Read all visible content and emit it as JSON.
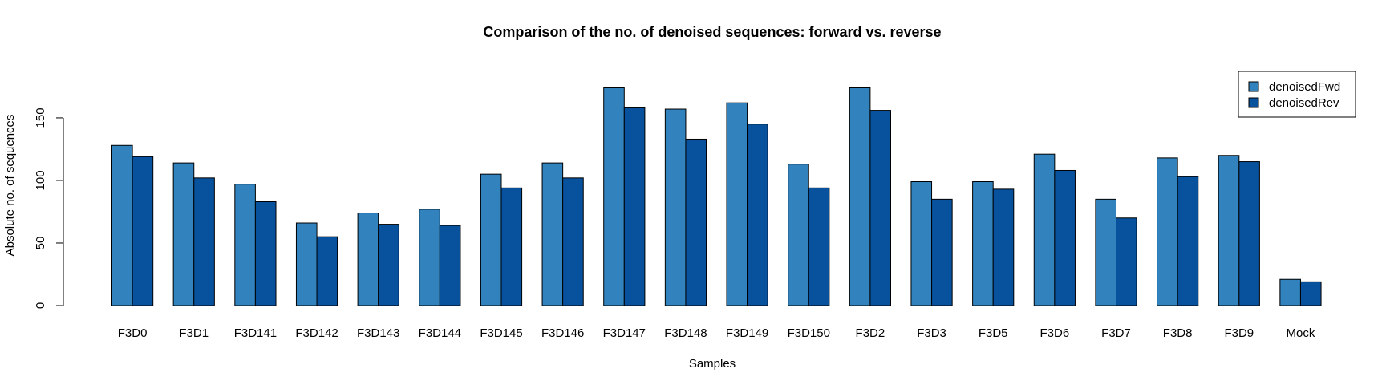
{
  "chart_data": {
    "type": "bar",
    "title": "Comparison of the no. of denoised sequences: forward vs. reverse",
    "xlabel": "Samples",
    "ylabel": "Absolute no. of sequences",
    "ylim": [
      0,
      175
    ],
    "yticks": [
      0,
      50,
      100,
      150
    ],
    "categories": [
      "F3D0",
      "F3D1",
      "F3D141",
      "F3D142",
      "F3D143",
      "F3D144",
      "F3D145",
      "F3D146",
      "F3D147",
      "F3D148",
      "F3D149",
      "F3D150",
      "F3D2",
      "F3D3",
      "F3D5",
      "F3D6",
      "F3D7",
      "F3D8",
      "F3D9",
      "Mock"
    ],
    "series": [
      {
        "name": "denoisedFwd",
        "color": "#3182bd",
        "values": [
          128,
          114,
          97,
          66,
          74,
          77,
          105,
          114,
          174,
          157,
          162,
          113,
          174,
          99,
          99,
          121,
          85,
          118,
          120,
          21
        ]
      },
      {
        "name": "denoisedRev",
        "color": "#08519c",
        "values": [
          119,
          102,
          83,
          55,
          65,
          64,
          94,
          102,
          158,
          133,
          145,
          94,
          156,
          85,
          93,
          108,
          70,
          103,
          115,
          19
        ]
      }
    ],
    "legend_position": "top-right",
    "grid": false
  }
}
